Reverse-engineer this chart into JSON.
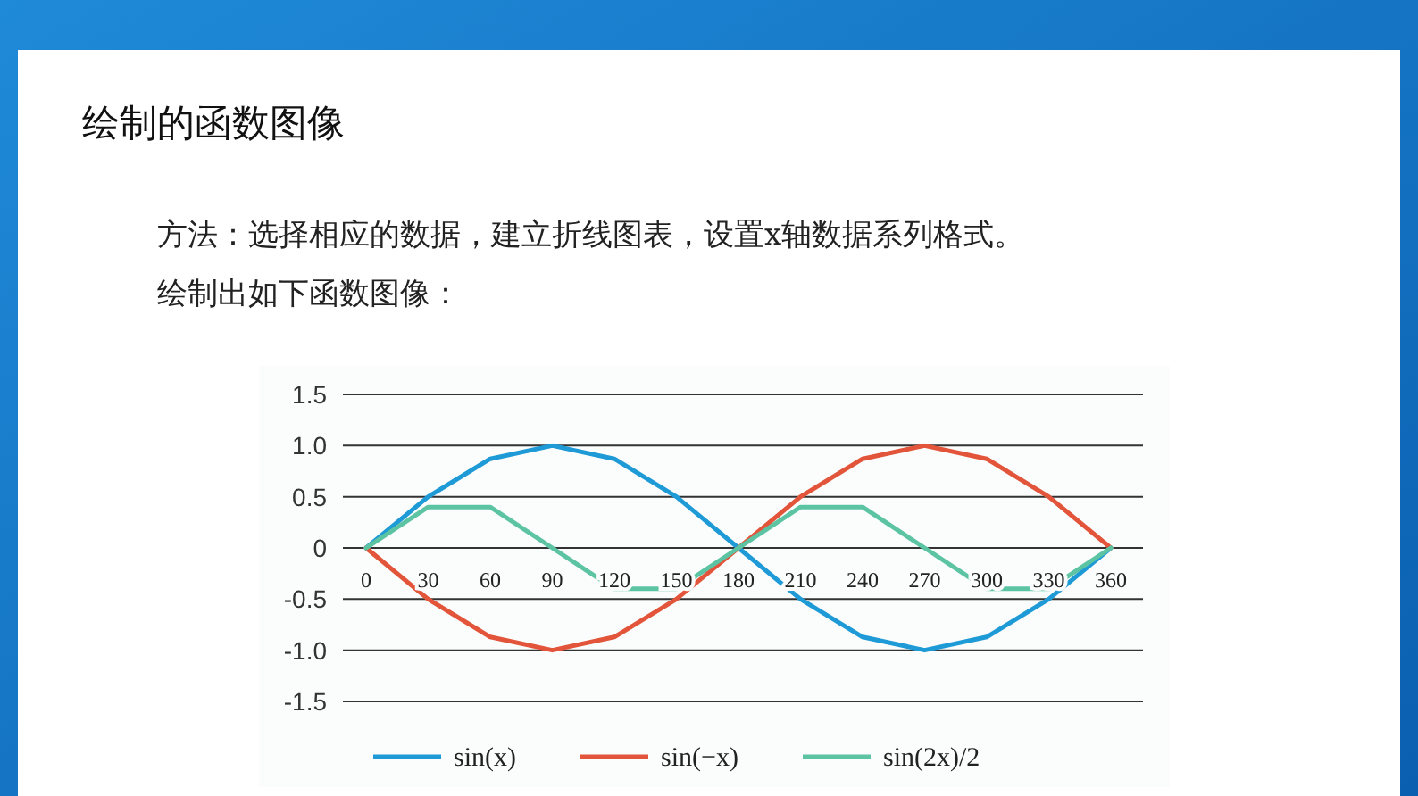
{
  "chart_data": {
    "type": "line",
    "title": "绘制的函数图像",
    "annotations": [
      "方法：选择相应的数据，建立折线图表，设置x轴数据系列格式。",
      "绘制出如下函数图像："
    ],
    "categories": [
      "0",
      "30",
      "60",
      "90",
      "120",
      "150",
      "180",
      "210",
      "240",
      "270",
      "300",
      "330",
      "360"
    ],
    "series": [
      {
        "name": "sin(x)",
        "color": "#1e9ad6",
        "values": [
          0,
          0.5,
          0.87,
          1.0,
          0.87,
          0.5,
          0,
          -0.5,
          -0.87,
          -1.0,
          -0.87,
          -0.5,
          0
        ]
      },
      {
        "name": "sin(−x)",
        "color": "#e2553a",
        "values": [
          0,
          -0.5,
          -0.87,
          -1.0,
          -0.87,
          -0.5,
          0,
          0.5,
          0.87,
          1.0,
          0.87,
          0.5,
          0
        ]
      },
      {
        "name": "sin(2x)/2",
        "color": "#5cc4a2",
        "values": [
          0,
          0.4,
          0.4,
          0,
          -0.4,
          -0.4,
          0,
          0.4,
          0.4,
          0,
          -0.4,
          -0.4,
          0
        ]
      }
    ],
    "ylim": [
      -1.5,
      1.5
    ],
    "yticks": [
      {
        "value": -1.5,
        "label": "-1.5"
      },
      {
        "value": -1.0,
        "label": "-1.0"
      },
      {
        "value": -0.5,
        "label": "-0.5"
      },
      0,
      {
        "value": 0.5,
        "label": "0.5"
      },
      {
        "value": 1.0,
        "label": "1.0"
      },
      1.5
    ],
    "grid": "y",
    "legend": "bottom"
  }
}
